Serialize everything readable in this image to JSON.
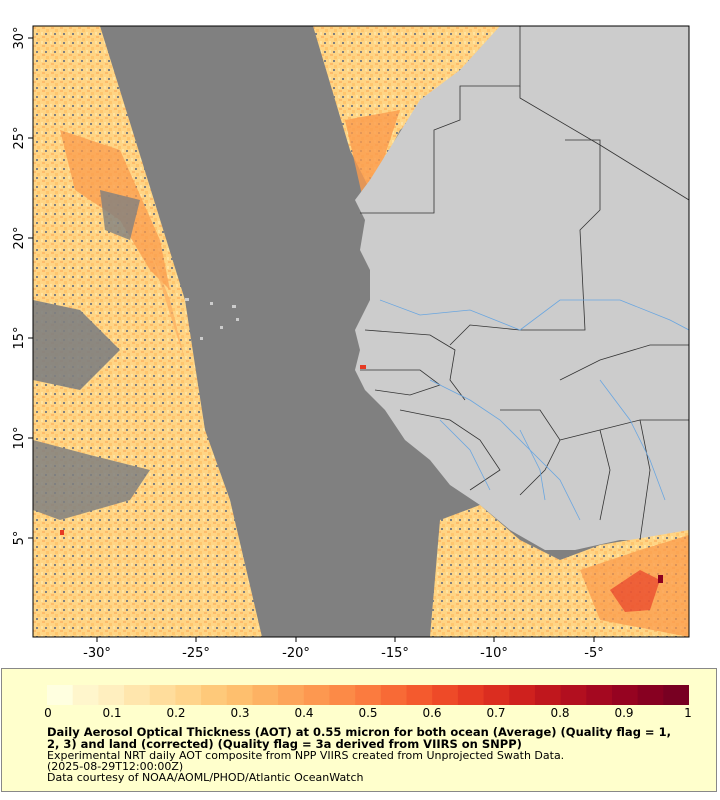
{
  "map": {
    "lat_labels": [
      "30°",
      "25°",
      "20°",
      "15°",
      "10°",
      "5°"
    ],
    "lon_labels": [
      "-30°",
      "-25°",
      "-20°",
      "-15°",
      "-10°",
      "-5°"
    ],
    "colors": {
      "no_data": "#808080",
      "land": "#cccccc",
      "border": "#333333",
      "river": "#6aa6e0",
      "aot_low": "#ffd98a",
      "aot_mid": "#fb9b4c",
      "aot_high": "#e8402a",
      "aot_max": "#8b0020"
    }
  },
  "legend": {
    "ticks": [
      "0",
      "0.1",
      "0.2",
      "0.3",
      "0.4",
      "0.5",
      "0.6",
      "0.7",
      "0.8",
      "0.9",
      "1"
    ],
    "title_line1": "Daily Aerosol Optical Thickness (AOT) at 0.55 micron for both ocean (Average) (Quality flag = 1,",
    "title_line2": "2, 3) and land (corrected) (Quality flag = 3a derived from VIIRS on SNPP)",
    "desc_line1": "Experimental NRT daily AOT composite from NPP VIIRS created from Unprojected Swath Data.",
    "desc_line2": "(2025-08-29T12:00:00Z)",
    "credit": "Data courtesy of NOAA/AOML/PHOD/Atlantic OceanWatch",
    "colors": [
      "#ffffe0",
      "#fff6cc",
      "#ffefbf",
      "#ffe6ad",
      "#ffdd9c",
      "#ffd48b",
      "#fec97a",
      "#febf6e",
      "#fdb263",
      "#fda55a",
      "#fd9850",
      "#fc8a47",
      "#fb7b3f",
      "#f86a36",
      "#f45a2e",
      "#ee4a28",
      "#e63a23",
      "#db2d20",
      "#cf211e",
      "#c0171d",
      "#b20f1f",
      "#a40820",
      "#960321",
      "#870021",
      "#780022"
    ]
  }
}
